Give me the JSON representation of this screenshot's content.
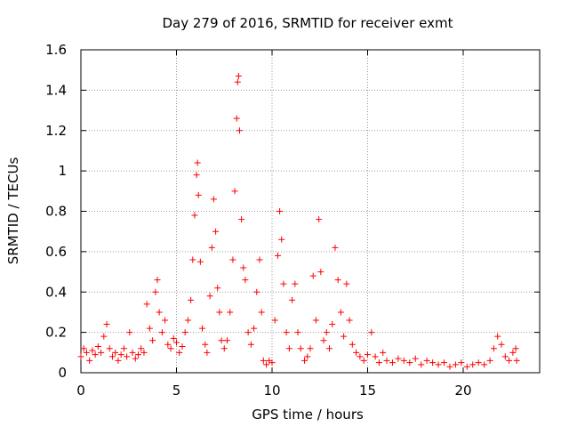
{
  "chart_data": {
    "type": "scatter",
    "title": "Day 279 of 2016, SRMTID for receiver exmt",
    "xlabel": "GPS time / hours",
    "ylabel": "SRMTID / TECUs",
    "xlim": [
      0,
      24
    ],
    "ylim": [
      0,
      1.6
    ],
    "grid": true,
    "marker": "+",
    "color": "#ff0000",
    "x_ticks": [
      "0",
      "5",
      "10",
      "15",
      "20"
    ],
    "y_ticks": [
      "0",
      "0.2",
      "0.4",
      "0.6",
      "0.8",
      "1",
      "1.2",
      "1.4",
      "1.6"
    ],
    "series": [
      {
        "name": "SRMTID",
        "points": [
          [
            0.0,
            0.08
          ],
          [
            0.15,
            0.12
          ],
          [
            0.3,
            0.1
          ],
          [
            0.45,
            0.06
          ],
          [
            0.6,
            0.11
          ],
          [
            0.75,
            0.09
          ],
          [
            0.9,
            0.13
          ],
          [
            1.05,
            0.1
          ],
          [
            1.2,
            0.18
          ],
          [
            1.35,
            0.24
          ],
          [
            1.5,
            0.12
          ],
          [
            1.65,
            0.08
          ],
          [
            1.8,
            0.1
          ],
          [
            1.95,
            0.06
          ],
          [
            2.1,
            0.09
          ],
          [
            2.25,
            0.12
          ],
          [
            2.4,
            0.08
          ],
          [
            2.55,
            0.2
          ],
          [
            2.7,
            0.1
          ],
          [
            2.85,
            0.07
          ],
          [
            3.0,
            0.09
          ],
          [
            3.15,
            0.12
          ],
          [
            3.3,
            0.1
          ],
          [
            3.45,
            0.34
          ],
          [
            3.6,
            0.22
          ],
          [
            3.75,
            0.16
          ],
          [
            3.9,
            0.4
          ],
          [
            4.0,
            0.46
          ],
          [
            4.1,
            0.3
          ],
          [
            4.25,
            0.2
          ],
          [
            4.4,
            0.26
          ],
          [
            4.55,
            0.14
          ],
          [
            4.7,
            0.12
          ],
          [
            4.85,
            0.17
          ],
          [
            5.0,
            0.15
          ],
          [
            5.15,
            0.1
          ],
          [
            5.3,
            0.13
          ],
          [
            5.45,
            0.2
          ],
          [
            5.6,
            0.26
          ],
          [
            5.75,
            0.36
          ],
          [
            5.85,
            0.56
          ],
          [
            5.95,
            0.78
          ],
          [
            6.05,
            0.98
          ],
          [
            6.1,
            1.04
          ],
          [
            6.15,
            0.88
          ],
          [
            6.25,
            0.55
          ],
          [
            6.35,
            0.22
          ],
          [
            6.5,
            0.14
          ],
          [
            6.6,
            0.1
          ],
          [
            6.75,
            0.38
          ],
          [
            6.85,
            0.62
          ],
          [
            6.95,
            0.86
          ],
          [
            7.05,
            0.7
          ],
          [
            7.15,
            0.42
          ],
          [
            7.25,
            0.3
          ],
          [
            7.35,
            0.16
          ],
          [
            7.5,
            0.12
          ],
          [
            7.65,
            0.16
          ],
          [
            7.8,
            0.3
          ],
          [
            7.95,
            0.56
          ],
          [
            8.05,
            0.9
          ],
          [
            8.15,
            1.26
          ],
          [
            8.2,
            1.44
          ],
          [
            8.25,
            1.47
          ],
          [
            8.3,
            1.2
          ],
          [
            8.4,
            0.76
          ],
          [
            8.5,
            0.52
          ],
          [
            8.6,
            0.46
          ],
          [
            8.75,
            0.2
          ],
          [
            8.9,
            0.14
          ],
          [
            9.05,
            0.22
          ],
          [
            9.2,
            0.4
          ],
          [
            9.35,
            0.56
          ],
          [
            9.45,
            0.3
          ],
          [
            9.55,
            0.06
          ],
          [
            9.7,
            0.04
          ],
          [
            9.85,
            0.06
          ],
          [
            10.0,
            0.05
          ],
          [
            10.15,
            0.26
          ],
          [
            10.3,
            0.58
          ],
          [
            10.4,
            0.8
          ],
          [
            10.5,
            0.66
          ],
          [
            10.6,
            0.44
          ],
          [
            10.75,
            0.2
          ],
          [
            10.9,
            0.12
          ],
          [
            11.05,
            0.36
          ],
          [
            11.2,
            0.44
          ],
          [
            11.35,
            0.2
          ],
          [
            11.5,
            0.12
          ],
          [
            11.7,
            0.06
          ],
          [
            11.85,
            0.08
          ],
          [
            12.0,
            0.12
          ],
          [
            12.15,
            0.48
          ],
          [
            12.3,
            0.26
          ],
          [
            12.45,
            0.76
          ],
          [
            12.55,
            0.5
          ],
          [
            12.7,
            0.16
          ],
          [
            12.85,
            0.2
          ],
          [
            13.0,
            0.12
          ],
          [
            13.15,
            0.24
          ],
          [
            13.3,
            0.62
          ],
          [
            13.45,
            0.46
          ],
          [
            13.6,
            0.3
          ],
          [
            13.75,
            0.18
          ],
          [
            13.9,
            0.44
          ],
          [
            14.05,
            0.26
          ],
          [
            14.2,
            0.14
          ],
          [
            14.4,
            0.1
          ],
          [
            14.6,
            0.08
          ],
          [
            14.8,
            0.06
          ],
          [
            15.0,
            0.09
          ],
          [
            15.2,
            0.2
          ],
          [
            15.4,
            0.08
          ],
          [
            15.6,
            0.05
          ],
          [
            15.8,
            0.1
          ],
          [
            16.0,
            0.06
          ],
          [
            16.3,
            0.05
          ],
          [
            16.6,
            0.07
          ],
          [
            16.9,
            0.06
          ],
          [
            17.2,
            0.05
          ],
          [
            17.5,
            0.07
          ],
          [
            17.8,
            0.04
          ],
          [
            18.1,
            0.06
          ],
          [
            18.4,
            0.05
          ],
          [
            18.7,
            0.04
          ],
          [
            19.0,
            0.05
          ],
          [
            19.3,
            0.03
          ],
          [
            19.6,
            0.04
          ],
          [
            19.9,
            0.05
          ],
          [
            20.2,
            0.03
          ],
          [
            20.5,
            0.04
          ],
          [
            20.8,
            0.05
          ],
          [
            21.1,
            0.04
          ],
          [
            21.4,
            0.06
          ],
          [
            21.6,
            0.12
          ],
          [
            21.8,
            0.18
          ],
          [
            22.0,
            0.14
          ],
          [
            22.2,
            0.08
          ],
          [
            22.4,
            0.06
          ],
          [
            22.6,
            0.1
          ],
          [
            22.75,
            0.12
          ],
          [
            22.8,
            0.06
          ]
        ]
      }
    ]
  }
}
